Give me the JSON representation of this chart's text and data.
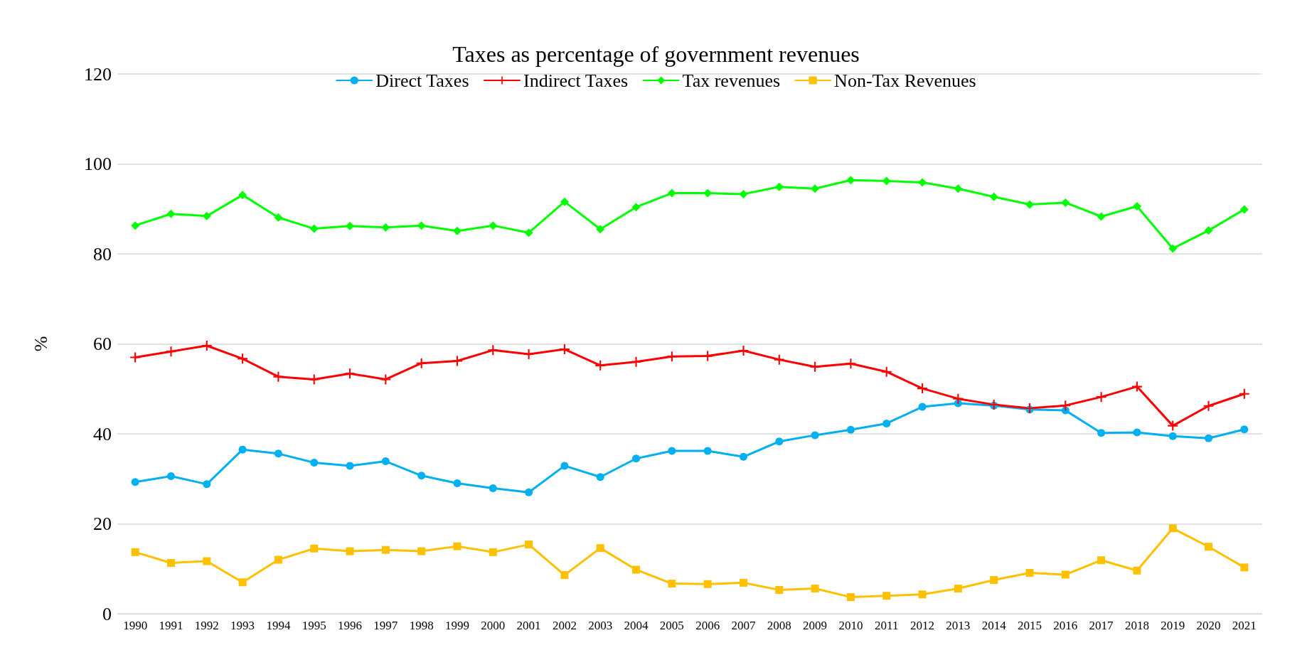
{
  "chart_data": {
    "type": "line",
    "title": "Taxes as percentage of government revenues",
    "ylabel": "%",
    "categories": [
      "1990",
      "1991",
      "1992",
      "1993",
      "1994",
      "1995",
      "1996",
      "1997",
      "1998",
      "1999",
      "2000",
      "2001",
      "2002",
      "2003",
      "2004",
      "2005",
      "2006",
      "2007",
      "2008",
      "2009",
      "2010",
      "2011",
      "2012",
      "2013",
      "2014",
      "2015",
      "2016",
      "2017",
      "2018",
      "2019",
      "2020",
      "2021"
    ],
    "series": [
      {
        "name": "Direct Taxes",
        "color": "#00b0f0",
        "marker": "circle",
        "values": [
          29.3,
          30.6,
          28.8,
          36.5,
          35.6,
          33.6,
          32.9,
          33.9,
          30.7,
          29.0,
          27.9,
          27.0,
          32.9,
          30.4,
          34.5,
          36.2,
          36.2,
          34.9,
          38.3,
          39.7,
          40.9,
          42.3,
          46.0,
          46.8,
          46.3,
          45.4,
          45.2,
          40.2,
          40.3,
          39.5,
          39.0,
          41.0
        ]
      },
      {
        "name": "Indirect Taxes",
        "color": "#ff0000",
        "marker": "cross",
        "values": [
          57.0,
          58.3,
          59.6,
          56.7,
          52.7,
          52.1,
          53.4,
          52.1,
          55.7,
          56.2,
          58.6,
          57.7,
          58.8,
          55.2,
          56.0,
          57.2,
          57.3,
          58.5,
          56.5,
          54.9,
          55.6,
          53.8,
          50.1,
          47.8,
          46.5,
          45.7,
          46.3,
          48.2,
          50.5,
          41.8,
          46.2,
          48.9
        ]
      },
      {
        "name": "Tax revenues",
        "color": "#00ff00",
        "marker": "diamond",
        "values": [
          86.3,
          88.9,
          88.4,
          93.1,
          88.1,
          85.6,
          86.2,
          85.9,
          86.3,
          85.1,
          86.3,
          84.7,
          91.6,
          85.5,
          90.4,
          93.5,
          93.5,
          93.3,
          94.9,
          94.5,
          96.4,
          96.2,
          95.9,
          94.5,
          92.7,
          91.0,
          91.4,
          88.3,
          90.6,
          81.2,
          85.2,
          89.9
        ]
      },
      {
        "name": "Non-Tax Revenues",
        "color": "#ffc000",
        "marker": "square",
        "values": [
          13.7,
          11.3,
          11.7,
          7.0,
          12.0,
          14.5,
          13.9,
          14.2,
          13.9,
          15.0,
          13.7,
          15.4,
          8.6,
          14.6,
          9.8,
          6.7,
          6.6,
          6.9,
          5.3,
          5.6,
          3.7,
          4.0,
          4.3,
          5.6,
          7.5,
          9.1,
          8.7,
          11.9,
          9.6,
          19.0,
          14.9,
          10.3
        ]
      }
    ],
    "ylim": [
      0,
      120
    ],
    "yticks": [
      0,
      20,
      40,
      60,
      80,
      100,
      120
    ],
    "grid": "y",
    "legend": "top",
    "line_style": "solid"
  }
}
